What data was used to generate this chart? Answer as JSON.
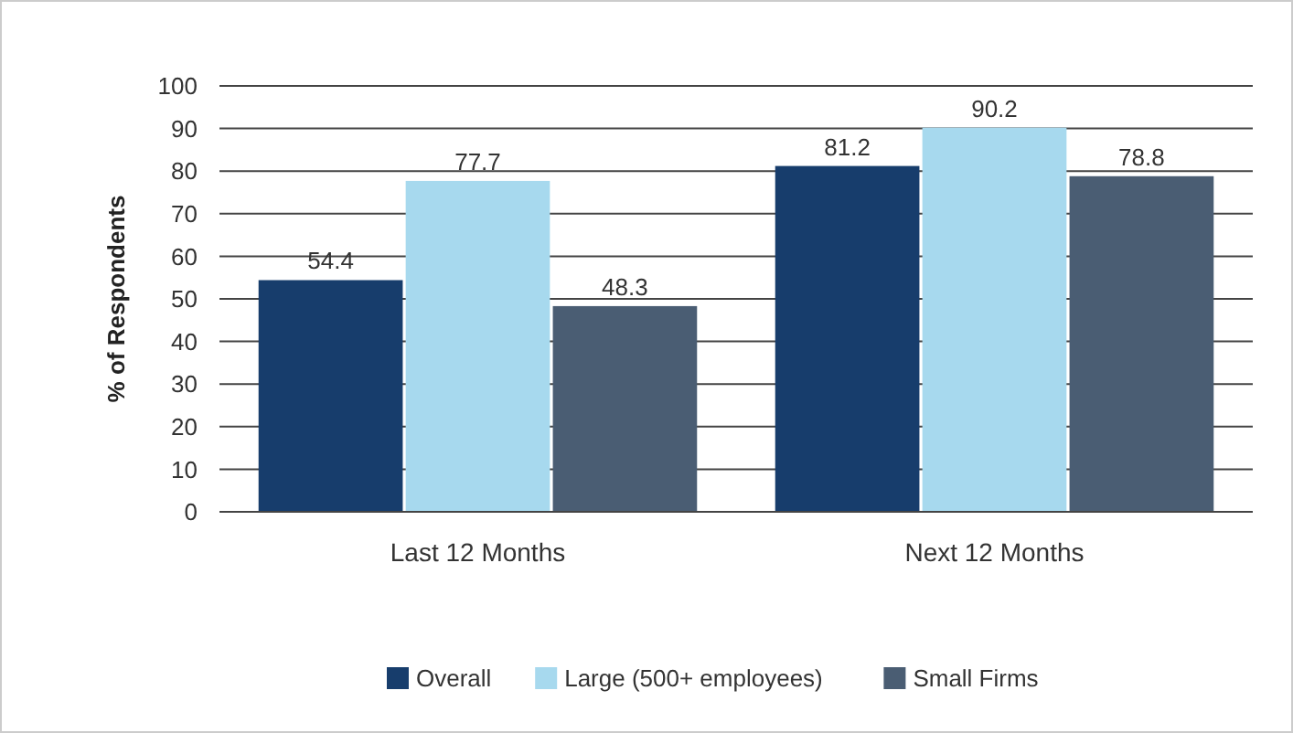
{
  "chart_data": {
    "type": "bar",
    "ylabel": "% of Respondents",
    "categories": [
      "Last 12 Months",
      "Next 12 Months"
    ],
    "series": [
      {
        "name": "Overall",
        "color": "#173d6c",
        "values": [
          54.4,
          81.2
        ]
      },
      {
        "name": "Large (500+ employees)",
        "color": "#a7d9ee",
        "values": [
          77.7,
          90.2
        ]
      },
      {
        "name": "Small Firms",
        "color": "#4a5d73",
        "values": [
          48.3,
          78.8
        ]
      }
    ],
    "ylim": [
      0,
      100
    ],
    "yticks": [
      0,
      10,
      20,
      30,
      40,
      50,
      60,
      70,
      80,
      90,
      100
    ],
    "grid": "y",
    "legend": "bottom",
    "data_labels": true
  }
}
